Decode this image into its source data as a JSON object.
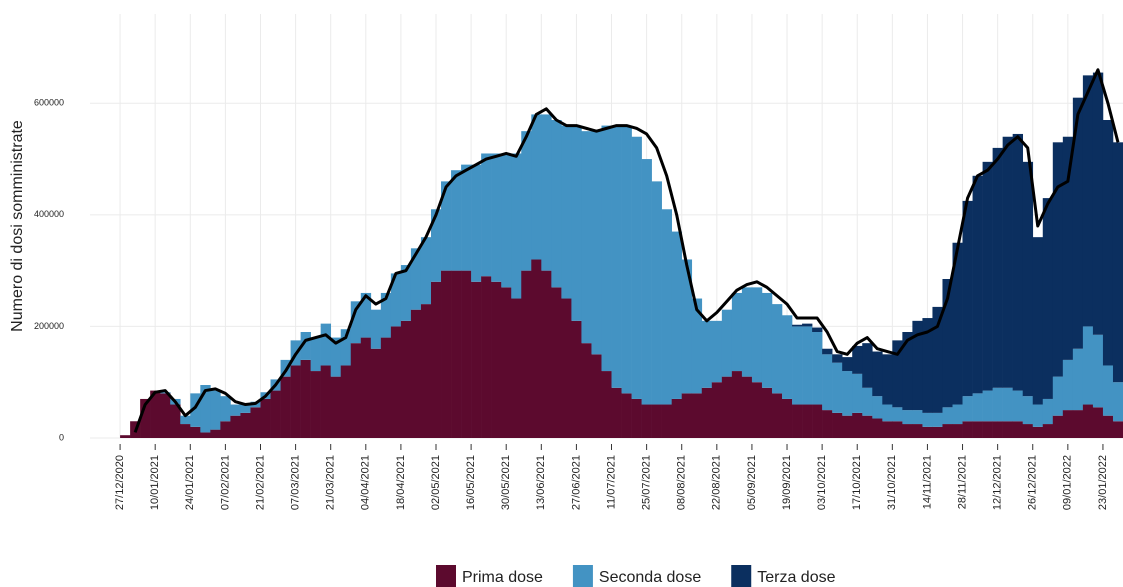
{
  "chart_data": {
    "type": "bar",
    "stacked": true,
    "y_label": "Numero di dosi somministrate",
    "x": [
      "27/12/2020",
      "31/12/2020",
      "04/01/2021",
      "08/01/2021",
      "12/01/2021",
      "16/01/2021",
      "20/01/2021",
      "24/01/2021",
      "28/01/2021",
      "01/02/2021",
      "05/02/2021",
      "09/02/2021",
      "13/02/2021",
      "17/02/2021",
      "21/02/2021",
      "25/02/2021",
      "01/03/2021",
      "05/03/2021",
      "09/03/2021",
      "13/03/2021",
      "17/03/2021",
      "21/03/2021",
      "25/03/2021",
      "29/03/2021",
      "02/04/2021",
      "06/04/2021",
      "10/04/2021",
      "14/04/2021",
      "18/04/2021",
      "22/04/2021",
      "26/04/2021",
      "30/04/2021",
      "04/05/2021",
      "08/05/2021",
      "12/05/2021",
      "16/05/2021",
      "20/05/2021",
      "24/05/2021",
      "28/05/2021",
      "01/06/2021",
      "05/06/2021",
      "09/06/2021",
      "13/06/2021",
      "17/06/2021",
      "21/06/2021",
      "25/06/2021",
      "29/06/2021",
      "03/07/2021",
      "07/07/2021",
      "11/07/2021",
      "15/07/2021",
      "19/07/2021",
      "23/07/2021",
      "27/07/2021",
      "31/07/2021",
      "04/08/2021",
      "08/08/2021",
      "12/08/2021",
      "16/08/2021",
      "20/08/2021",
      "24/08/2021",
      "28/08/2021",
      "01/09/2021",
      "05/09/2021",
      "09/09/2021",
      "13/09/2021",
      "17/09/2021",
      "21/09/2021",
      "25/09/2021",
      "29/09/2021",
      "03/10/2021",
      "07/10/2021",
      "11/10/2021",
      "15/10/2021",
      "19/10/2021",
      "23/10/2021",
      "27/10/2021",
      "31/10/2021",
      "04/11/2021",
      "08/11/2021",
      "12/11/2021",
      "16/11/2021",
      "20/11/2021",
      "24/11/2021",
      "28/11/2021",
      "02/12/2021",
      "06/12/2021",
      "10/12/2021",
      "14/12/2021",
      "18/12/2021",
      "22/12/2021",
      "26/12/2021",
      "30/12/2021",
      "03/01/2022",
      "07/01/2022",
      "11/01/2022",
      "15/01/2022",
      "19/01/2022",
      "23/01/2022",
      "27/01/2022"
    ],
    "series": [
      {
        "name": "Prima dose",
        "color": "#5c0a2e",
        "values": [
          5000,
          30000,
          70000,
          85000,
          80000,
          60000,
          25000,
          20000,
          10000,
          15000,
          30000,
          40000,
          45000,
          55000,
          70000,
          85000,
          110000,
          130000,
          140000,
          120000,
          130000,
          110000,
          130000,
          170000,
          180000,
          160000,
          180000,
          200000,
          210000,
          230000,
          240000,
          280000,
          300000,
          300000,
          300000,
          280000,
          290000,
          280000,
          270000,
          250000,
          300000,
          320000,
          300000,
          270000,
          250000,
          210000,
          170000,
          150000,
          120000,
          90000,
          80000,
          70000,
          60000,
          60000,
          60000,
          70000,
          80000,
          80000,
          90000,
          100000,
          110000,
          120000,
          110000,
          100000,
          90000,
          80000,
          70000,
          60000,
          60000,
          60000,
          50000,
          45000,
          40000,
          45000,
          40000,
          35000,
          30000,
          30000,
          25000,
          25000,
          20000,
          20000,
          25000,
          25000,
          30000,
          30000,
          30000,
          30000,
          30000,
          30000,
          25000,
          20000,
          25000,
          40000,
          50000,
          50000,
          60000,
          55000,
          40000,
          30000
        ]
      },
      {
        "name": "Seconda dose",
        "color": "#4393c3",
        "values": [
          0,
          0,
          0,
          0,
          2000,
          10000,
          15000,
          60000,
          85000,
          70000,
          45000,
          20000,
          15000,
          10000,
          12000,
          20000,
          30000,
          45000,
          50000,
          60000,
          75000,
          70000,
          65000,
          75000,
          80000,
          70000,
          80000,
          95000,
          100000,
          110000,
          120000,
          130000,
          160000,
          180000,
          190000,
          210000,
          220000,
          230000,
          240000,
          260000,
          250000,
          260000,
          280000,
          300000,
          310000,
          350000,
          380000,
          400000,
          440000,
          470000,
          480000,
          470000,
          440000,
          400000,
          350000,
          300000,
          240000,
          170000,
          120000,
          110000,
          120000,
          140000,
          160000,
          170000,
          170000,
          160000,
          150000,
          140000,
          140000,
          130000,
          100000,
          90000,
          80000,
          70000,
          50000,
          40000,
          30000,
          25000,
          25000,
          25000,
          25000,
          25000,
          30000,
          35000,
          45000,
          50000,
          55000,
          60000,
          60000,
          55000,
          50000,
          40000,
          45000,
          70000,
          90000,
          110000,
          140000,
          130000,
          90000,
          70000
        ]
      },
      {
        "name": "Terza dose",
        "color": "#0b2f5f",
        "values": [
          0,
          0,
          0,
          0,
          0,
          0,
          0,
          0,
          0,
          0,
          0,
          0,
          0,
          0,
          0,
          0,
          0,
          0,
          0,
          0,
          0,
          0,
          0,
          0,
          0,
          0,
          0,
          0,
          0,
          0,
          0,
          0,
          0,
          0,
          0,
          0,
          0,
          0,
          0,
          0,
          0,
          0,
          0,
          0,
          0,
          0,
          0,
          0,
          0,
          0,
          0,
          0,
          0,
          0,
          0,
          0,
          0,
          0,
          0,
          0,
          0,
          0,
          0,
          0,
          0,
          0,
          0,
          3000,
          5000,
          8000,
          10000,
          15000,
          25000,
          50000,
          80000,
          80000,
          90000,
          120000,
          140000,
          160000,
          170000,
          190000,
          230000,
          290000,
          350000,
          390000,
          410000,
          430000,
          450000,
          460000,
          420000,
          300000,
          360000,
          420000,
          400000,
          450000,
          450000,
          470000,
          440000,
          430000
        ]
      }
    ],
    "line": {
      "color": "#000000",
      "values": [
        null,
        10000,
        60000,
        82000,
        85000,
        65000,
        40000,
        55000,
        85000,
        88000,
        80000,
        65000,
        60000,
        62000,
        75000,
        95000,
        120000,
        150000,
        175000,
        180000,
        185000,
        170000,
        180000,
        230000,
        255000,
        240000,
        250000,
        295000,
        300000,
        330000,
        360000,
        400000,
        450000,
        470000,
        480000,
        490000,
        500000,
        505000,
        510000,
        505000,
        540000,
        580000,
        590000,
        570000,
        560000,
        560000,
        555000,
        550000,
        555000,
        560000,
        560000,
        555000,
        545000,
        520000,
        470000,
        400000,
        310000,
        230000,
        210000,
        225000,
        245000,
        265000,
        275000,
        280000,
        270000,
        255000,
        240000,
        215000,
        215000,
        215000,
        190000,
        155000,
        150000,
        170000,
        180000,
        160000,
        155000,
        150000,
        175000,
        185000,
        190000,
        200000,
        250000,
        340000,
        430000,
        470000,
        480000,
        500000,
        525000,
        540000,
        520000,
        380000,
        420000,
        450000,
        460000,
        580000,
        620000,
        660000,
        600000,
        530000
      ]
    },
    "xlim": [
      "15/12/2020",
      "31/01/2022"
    ],
    "xticks": [
      "27/12/2020",
      "10/01/2021",
      "24/01/2021",
      "07/02/2021",
      "21/02/2021",
      "07/03/2021",
      "21/03/2021",
      "04/04/2021",
      "18/04/2021",
      "02/05/2021",
      "16/05/2021",
      "30/05/2021",
      "13/06/2021",
      "27/06/2021",
      "11/07/2021",
      "25/07/2021",
      "08/08/2021",
      "22/08/2021",
      "05/09/2021",
      "19/09/2021",
      "03/10/2021",
      "17/10/2021",
      "31/10/2021",
      "14/11/2021",
      "28/11/2021",
      "12/12/2021",
      "26/12/2021",
      "09/01/2022",
      "23/01/2022"
    ],
    "ylim": [
      0,
      760000
    ],
    "yticks": [
      0,
      200000,
      400000,
      600000
    ],
    "grid": true,
    "legend": "bottom"
  }
}
